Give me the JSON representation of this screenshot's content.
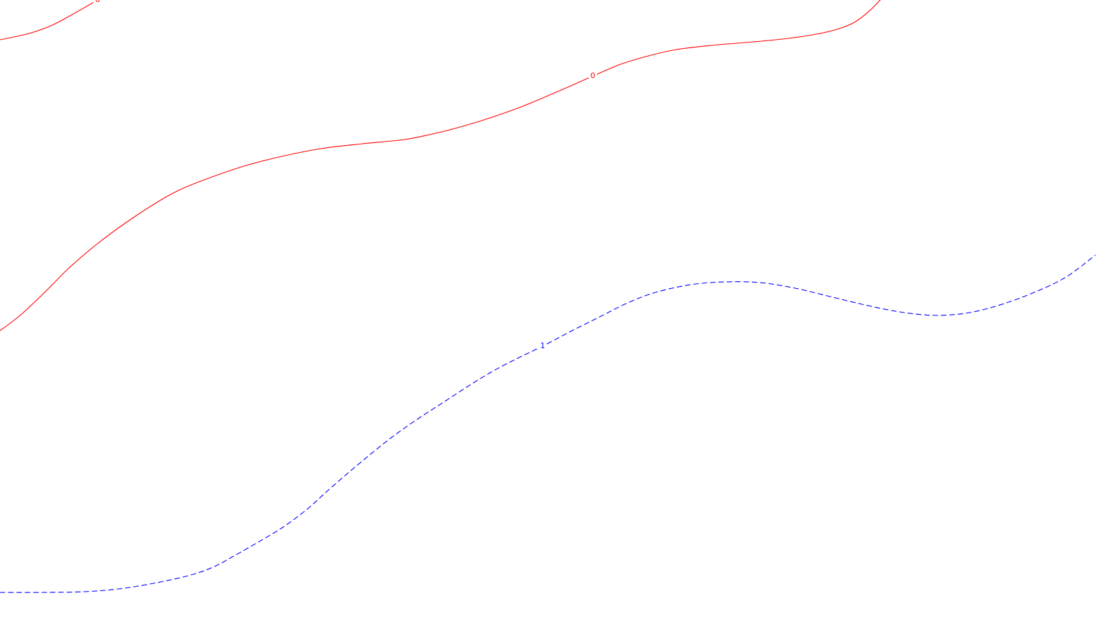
{
  "chart_data": {
    "type": "line",
    "title": "",
    "xlabel": "",
    "ylabel": "",
    "grid": false,
    "legend": "none",
    "series": [
      {
        "level_label": "0",
        "color": "#ff0000",
        "dashed": false,
        "label_at": 22,
        "points": [
          [
            0,
            57
          ],
          [
            20,
            53
          ],
          [
            45,
            47
          ],
          [
            75,
            36
          ],
          [
            105,
            20
          ],
          [
            140,
            0
          ]
        ]
      },
      {
        "level_label": "0",
        "color": "#ff0000",
        "dashed": false,
        "label_at": 19,
        "points": [
          [
            0,
            474
          ],
          [
            30,
            451
          ],
          [
            65,
            418
          ],
          [
            100,
            383
          ],
          [
            140,
            349
          ],
          [
            185,
            316
          ],
          [
            230,
            287
          ],
          [
            260,
            271
          ],
          [
            300,
            255
          ],
          [
            350,
            238
          ],
          [
            400,
            225
          ],
          [
            460,
            213
          ],
          [
            520,
            206
          ],
          [
            580,
            200
          ],
          [
            620,
            192
          ],
          [
            645,
            186
          ],
          [
            690,
            173
          ],
          [
            745,
            154
          ],
          [
            800,
            131
          ],
          [
            850,
            109
          ],
          [
            890,
            92
          ],
          [
            930,
            80
          ],
          [
            970,
            71
          ],
          [
            1020,
            65
          ],
          [
            1080,
            60
          ],
          [
            1130,
            55
          ],
          [
            1170,
            49
          ],
          [
            1200,
            42
          ],
          [
            1225,
            32
          ],
          [
            1245,
            17
          ],
          [
            1262,
            0
          ]
        ]
      },
      {
        "level_label": "1",
        "color": "#0000ff",
        "dashed": true,
        "label_at": 20,
        "points": [
          [
            0,
            849
          ],
          [
            60,
            849
          ],
          [
            120,
            848
          ],
          [
            170,
            844
          ],
          [
            220,
            836
          ],
          [
            270,
            825
          ],
          [
            305,
            813
          ],
          [
            335,
            797
          ],
          [
            370,
            777
          ],
          [
            405,
            756
          ],
          [
            440,
            730
          ],
          [
            470,
            703
          ],
          [
            500,
            677
          ],
          [
            530,
            652
          ],
          [
            560,
            628
          ],
          [
            595,
            603
          ],
          [
            635,
            577
          ],
          [
            675,
            551
          ],
          [
            710,
            530
          ],
          [
            745,
            512
          ],
          [
            778,
            496
          ],
          [
            820,
            474
          ],
          [
            860,
            454
          ],
          [
            900,
            434
          ],
          [
            940,
            419
          ],
          [
            990,
            408
          ],
          [
            1040,
            404
          ],
          [
            1090,
            405
          ],
          [
            1140,
            413
          ],
          [
            1190,
            425
          ],
          [
            1240,
            437
          ],
          [
            1290,
            447
          ],
          [
            1340,
            452
          ],
          [
            1390,
            448
          ],
          [
            1440,
            435
          ],
          [
            1490,
            416
          ],
          [
            1530,
            396
          ],
          [
            1570,
            366
          ]
        ]
      }
    ]
  }
}
